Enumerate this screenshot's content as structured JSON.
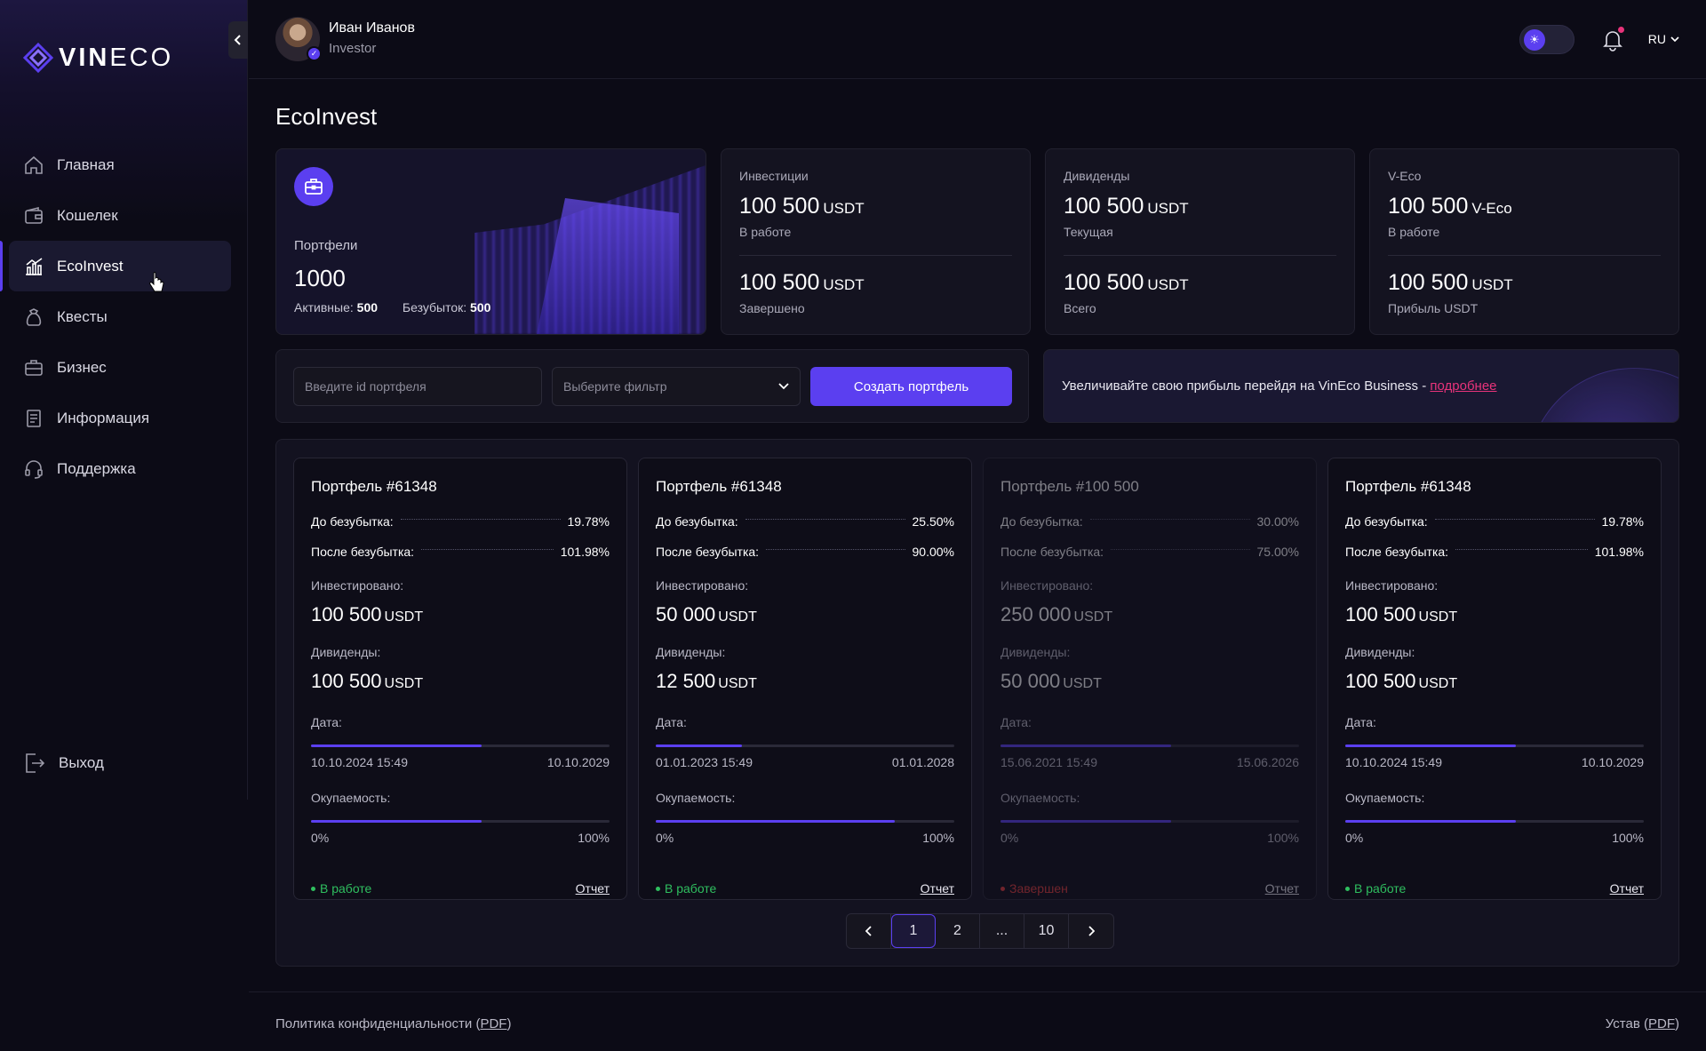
{
  "brand": {
    "logo_bold": "VIN",
    "logo_light": "ECO"
  },
  "sidebar": {
    "items": [
      {
        "label": "Главная",
        "icon": "home-icon"
      },
      {
        "label": "Кошелек",
        "icon": "wallet-icon"
      },
      {
        "label": "EcoInvest",
        "icon": "chart-bars-icon",
        "active": true
      },
      {
        "label": "Квесты",
        "icon": "quest-bag-icon"
      },
      {
        "label": "Бизнес",
        "icon": "briefcase-icon"
      },
      {
        "label": "Информация",
        "icon": "document-icon"
      },
      {
        "label": "Поддержка",
        "icon": "headset-icon"
      }
    ],
    "logout": "Выход"
  },
  "header": {
    "user_name": "Иван Иванов",
    "user_role": "Investor",
    "language": "RU"
  },
  "page": {
    "title": "EcoInvest"
  },
  "stats": {
    "portfolios": {
      "label": "Портфели",
      "value": "1000",
      "active_label": "Активные:",
      "active_value": "500",
      "breakeven_label": "Безубыток:",
      "breakeven_value": "500"
    },
    "investments": {
      "label": "Инвестиции",
      "v1": "100 500",
      "u1": "USDT",
      "s1": "В работе",
      "v2": "100 500",
      "u2": "USDT",
      "s2": "Завершено"
    },
    "dividends": {
      "label": "Дивиденды",
      "v1": "100 500",
      "u1": "USDT",
      "s1": "Текущая",
      "v2": "100 500",
      "u2": "USDT",
      "s2": "Всего"
    },
    "veco": {
      "label": "V-Eco",
      "v1": "100 500",
      "u1": "V-Eco",
      "s1": "В работе",
      "v2": "100 500",
      "u2": "USDT",
      "s2": "Прибыль USDT"
    }
  },
  "filters": {
    "id_placeholder": "Введите id портфеля",
    "filter_placeholder": "Выберите фильтр",
    "create_button": "Создать портфель"
  },
  "promo": {
    "text": "Увеличивайте свою прибыль перейдя на VinEco Business - ",
    "link": "подробнее"
  },
  "labels": {
    "before": "До безубытка:",
    "after": "После безубытка:",
    "invested": "Инвестировано:",
    "dividends": "Дивиденды:",
    "date": "Дата:",
    "payback": "Окупаемость:",
    "zero": "0%",
    "hundred": "100%",
    "report": "Отчет",
    "unit": "USDT"
  },
  "portfolios": [
    {
      "title": "Портфель #61348",
      "before": "19.78%",
      "after": "101.98%",
      "invested": "100 500",
      "dividends": "100 500",
      "date_start": "10.10.2024 15:49",
      "date_end": "10.10.2029",
      "date_progress": 0.57,
      "payback_progress": 0.57,
      "status": "В работе",
      "status_color": "#2fbf5f",
      "dim": false
    },
    {
      "title": "Портфель #61348",
      "before": "25.50%",
      "after": "90.00%",
      "invested": "50 000",
      "dividends": "12 500",
      "date_start": "01.01.2023 15:49",
      "date_end": "01.01.2028",
      "date_progress": 0.29,
      "payback_progress": 0.8,
      "status": "В работе",
      "status_color": "#2fbf5f",
      "dim": false
    },
    {
      "title": "Портфель #100 500",
      "before": "30.00%",
      "after": "75.00%",
      "invested": "250 000",
      "dividends": "50 000",
      "date_start": "15.06.2021 15:49",
      "date_end": "15.06.2026",
      "date_progress": 0.57,
      "payback_progress": 0.57,
      "status": "Завершен",
      "status_color": "#e33b3b",
      "dim": true
    },
    {
      "title": "Портфель #61348",
      "before": "19.78%",
      "after": "101.98%",
      "invested": "100 500",
      "dividends": "100 500",
      "date_start": "10.10.2024 15:49",
      "date_end": "10.10.2029",
      "date_progress": 0.57,
      "payback_progress": 0.57,
      "status": "В работе",
      "status_color": "#2fbf5f",
      "dim": false
    }
  ],
  "pagination": {
    "pages": [
      "1",
      "2",
      "...",
      "10"
    ],
    "active": "1"
  },
  "footer": {
    "privacy": "Политика конфиденциальности",
    "charter": "Устав",
    "pdf": "PDF"
  },
  "colors": {
    "accent": "#5b3ff0",
    "link": "#e8337a",
    "success": "#2fbf5f",
    "danger": "#e33b3b"
  }
}
